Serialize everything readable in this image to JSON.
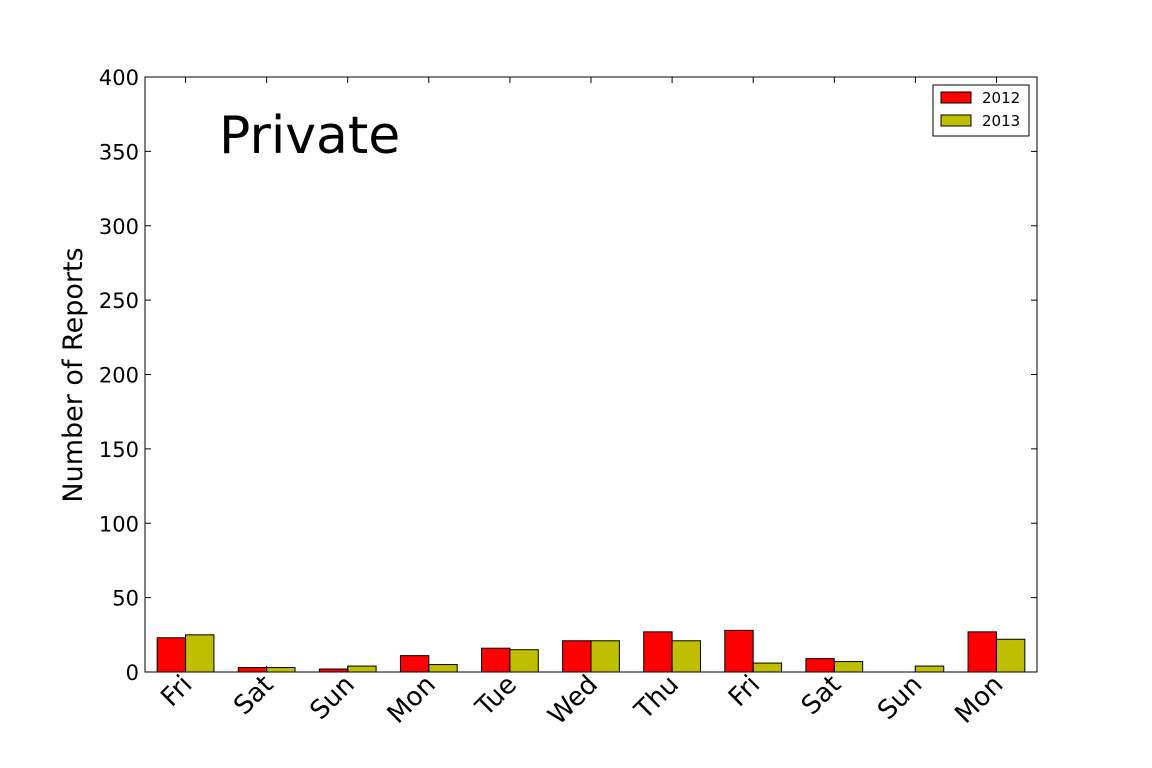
{
  "chart_data": {
    "type": "bar",
    "title": "",
    "annotation": "Private",
    "xlabel": "",
    "ylabel": "Number of Reports",
    "categories": [
      "Fri",
      "Sat",
      "Sun",
      "Mon",
      "Tue",
      "Wed",
      "Thu",
      "Fri",
      "Sat",
      "Sun",
      "Mon"
    ],
    "series": [
      {
        "name": "2012",
        "color": "#ff0000",
        "values": [
          23,
          3,
          2,
          11,
          16,
          21,
          27,
          28,
          9,
          0,
          27
        ]
      },
      {
        "name": "2013",
        "color": "#bfbf00",
        "values": [
          25,
          3,
          4,
          5,
          15,
          21,
          21,
          6,
          7,
          4,
          22
        ]
      }
    ],
    "ylim": [
      0,
      400
    ],
    "yticks": [
      0,
      50,
      100,
      150,
      200,
      250,
      300,
      350,
      400
    ],
    "grid": false,
    "legend_position": "top-right"
  }
}
